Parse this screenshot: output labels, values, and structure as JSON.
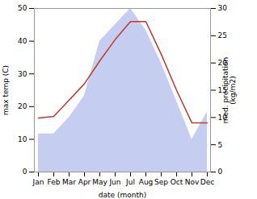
{
  "chart_data": {
    "type": "line",
    "categories": [
      "Jan",
      "Feb",
      "Mar",
      "Apr",
      "May",
      "Jun",
      "Jul",
      "Aug",
      "Sep",
      "Oct",
      "Nov",
      "Dec"
    ],
    "series": [
      {
        "type": "area",
        "axis": "y2",
        "color": "#c5cef0",
        "values": [
          7.0,
          7.0,
          10.0,
          14.0,
          24.0,
          27.0,
          30.0,
          26.0,
          20.0,
          13.0,
          6.0,
          11.0
        ]
      },
      {
        "type": "line",
        "color": "#c0392b",
        "values": [
          16.5,
          17.0,
          22.0,
          27.0,
          34.0,
          40.5,
          46.0,
          46.0,
          36.0,
          25.0,
          15.0,
          15.0
        ]
      }
    ],
    "xlabel": "date (month)",
    "ylabel": "max temp (C)",
    "y2label": "med. precipitation\n(kg/m2)",
    "ylim": [
      0,
      50
    ],
    "yticks": [
      0,
      10,
      20,
      30,
      40,
      50
    ],
    "y2lim": [
      0,
      30
    ],
    "y2ticks": [
      0,
      5,
      10,
      15,
      20,
      25,
      30
    ],
    "grid": false
  }
}
